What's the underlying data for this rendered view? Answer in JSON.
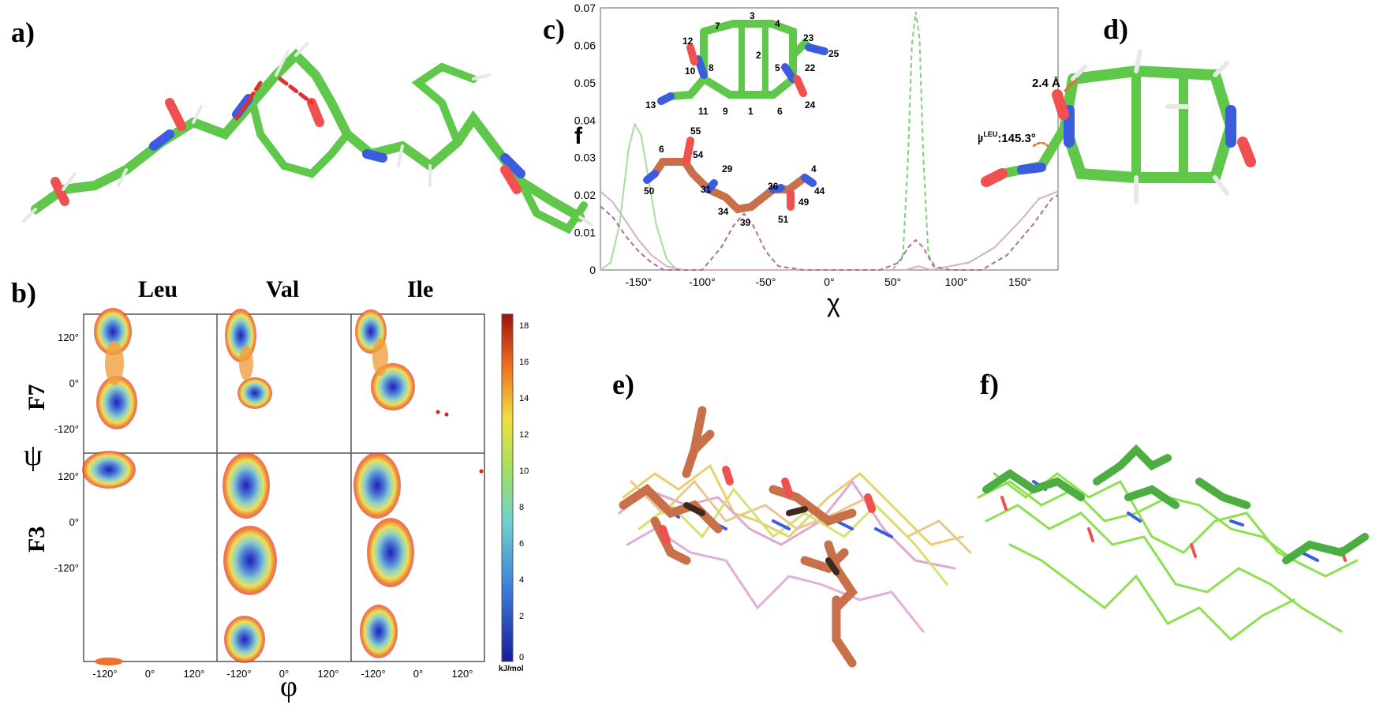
{
  "panels": {
    "a": "a)",
    "b": "b)",
    "c": "c)",
    "d": "d)",
    "e": "e)",
    "f": "f)"
  },
  "panel_b": {
    "columns": [
      "Leu",
      "Val",
      "Ile"
    ],
    "rows": [
      "F7",
      "F3"
    ],
    "x_symbol": "φ",
    "y_symbol": "ψ",
    "x_ticks": [
      "-120°",
      "0°",
      "120°"
    ],
    "y_ticks": [
      "120°",
      "0°",
      "-120°"
    ],
    "colorbar_ticks": [
      "18",
      "16",
      "14",
      "12",
      "10",
      "8",
      "6",
      "4",
      "2",
      "0"
    ],
    "colorbar_unit": "kJ/mol"
  },
  "panel_c_atoms_green": [
    "7",
    "3",
    "4",
    "12",
    "2",
    "23",
    "10",
    "8",
    "5",
    "22",
    "25",
    "13",
    "11",
    "9",
    "1",
    "6",
    "24"
  ],
  "panel_c_atoms_brown": [
    "55",
    "6",
    "54",
    "29",
    "50",
    "31",
    "36",
    "4",
    "34",
    "44",
    "39",
    "49",
    "51"
  ],
  "panel_d": {
    "distance_label": "2.4 Å",
    "psi_prefix": "ψ",
    "psi_sup": "LEU",
    "psi_value": ":145.3°"
  },
  "chart_data": {
    "type": "line",
    "xlabel": "χ",
    "ylabel": "f",
    "xlim": [
      -180,
      180
    ],
    "ylim": [
      0,
      0.07
    ],
    "x_ticks": [
      "-150°",
      "-100°",
      "-50°",
      "0°",
      "50°",
      "100°",
      "150°"
    ],
    "y_ticks": [
      "0",
      "0.01",
      "0.02",
      "0.03",
      "0.04",
      "0.05",
      "0.06",
      "0.07"
    ],
    "series": [
      {
        "color": "#a8dca0",
        "dash": false,
        "x": [
          -180,
          -172,
          -165,
          -158,
          -153,
          -148,
          -142,
          -136,
          -128,
          -120,
          -110
        ],
        "values": [
          0.0,
          0.002,
          0.012,
          0.032,
          0.039,
          0.036,
          0.024,
          0.012,
          0.003,
          0.0,
          0.0
        ]
      },
      {
        "color": "#7fd07a",
        "dash": true,
        "x": [
          50,
          58,
          62,
          65,
          68,
          71,
          74,
          78,
          85
        ],
        "values": [
          0.0,
          0.004,
          0.03,
          0.06,
          0.069,
          0.062,
          0.03,
          0.004,
          0.0
        ]
      },
      {
        "color": "#d4b0c8",
        "dash": false,
        "x": [
          -180,
          -170,
          -160,
          -150,
          -140,
          -128,
          -115,
          60,
          70,
          80,
          110,
          130,
          150,
          165,
          180
        ],
        "values": [
          0.021,
          0.018,
          0.013,
          0.008,
          0.004,
          0.001,
          0.0,
          0.0,
          0.001,
          0.0,
          0.002,
          0.006,
          0.013,
          0.019,
          0.021
        ]
      },
      {
        "color": "#b07090",
        "dash": true,
        "x": [
          -180,
          -170,
          -160,
          -150,
          -140,
          -130,
          -115,
          -100,
          -85,
          -75,
          -67,
          -60,
          -50,
          -40,
          -20,
          0,
          40,
          55,
          62,
          68,
          74,
          82,
          95,
          120,
          140,
          160,
          175,
          180
        ],
        "values": [
          0.017,
          0.014,
          0.009,
          0.005,
          0.002,
          0.0,
          0.0,
          0.0,
          0.006,
          0.012,
          0.015,
          0.012,
          0.005,
          0.001,
          0.0,
          0.0,
          0.0,
          0.002,
          0.006,
          0.008,
          0.006,
          0.001,
          0.0,
          0.0,
          0.004,
          0.012,
          0.019,
          0.02
        ]
      }
    ]
  }
}
